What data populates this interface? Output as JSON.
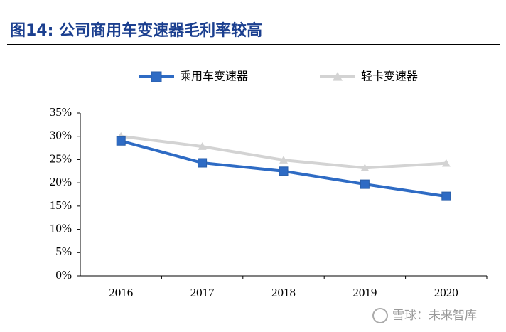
{
  "chart_data": {
    "type": "line",
    "title": "图14:  公司商用车变速器毛利率较高",
    "categories": [
      "2016",
      "2017",
      "2018",
      "2019",
      "2020"
    ],
    "series": [
      {
        "name": "乘用车变速器",
        "color": "#2e6bc4",
        "marker": "square",
        "values": [
          29.0,
          24.3,
          22.5,
          19.7,
          17.1
        ]
      },
      {
        "name": "轻卡变速器",
        "color": "#d3d3d3",
        "marker": "triangle",
        "values": [
          30.0,
          27.8,
          24.9,
          23.2,
          24.2
        ]
      }
    ],
    "ylim": [
      0,
      35
    ],
    "yticks": [
      {
        "value": 0,
        "label": "0%"
      },
      {
        "value": 5,
        "label": "5%"
      },
      {
        "value": 10,
        "label": "10%"
      },
      {
        "value": 15,
        "label": "15%"
      },
      {
        "value": 20,
        "label": "20%"
      },
      {
        "value": 25,
        "label": "25%"
      },
      {
        "value": 30,
        "label": "30%"
      },
      {
        "value": 35,
        "label": "35%"
      }
    ],
    "grid": false,
    "legend": "top",
    "watermark": "雪球：未来智库"
  }
}
